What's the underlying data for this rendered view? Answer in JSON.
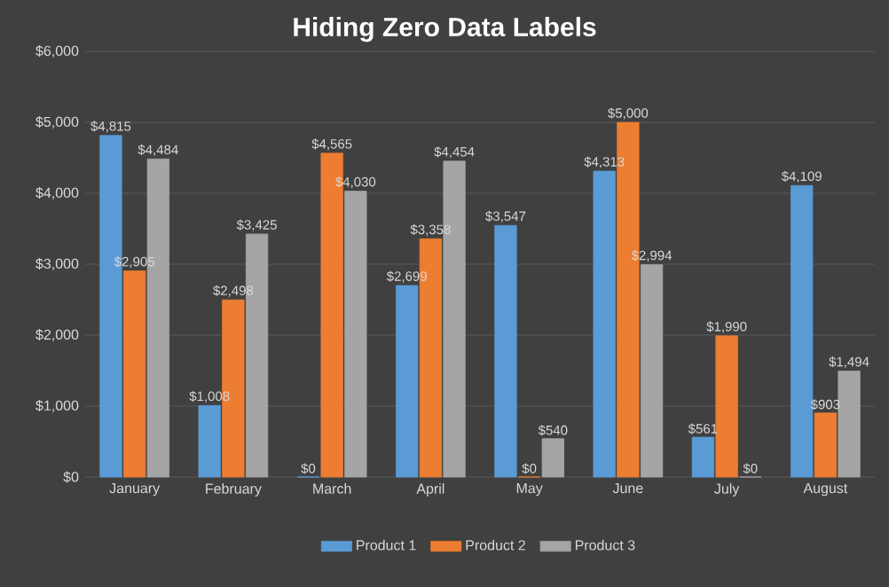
{
  "chart_data": {
    "type": "bar",
    "title": "Hiding Zero Data Labels",
    "categories": [
      "January",
      "February",
      "March",
      "April",
      "May",
      "June",
      "July",
      "August"
    ],
    "series": [
      {
        "name": "Product 1",
        "color": "#5b9bd5",
        "values": [
          4815,
          1008,
          0,
          2699,
          3547,
          4313,
          561,
          4109
        ],
        "value_labels": [
          "$4,815",
          "$1,008",
          "$0",
          "$2,699",
          "$3,547",
          "$4,313",
          "$561",
          "$4,109"
        ]
      },
      {
        "name": "Product 2",
        "color": "#ed7d31",
        "values": [
          2905,
          2498,
          4565,
          3358,
          0,
          5000,
          1990,
          903
        ],
        "value_labels": [
          "$2,905",
          "$2,498",
          "$4,565",
          "$3,358",
          "$0",
          "$5,000",
          "$1,990",
          "$903"
        ]
      },
      {
        "name": "Product 3",
        "color": "#a5a5a5",
        "values": [
          4484,
          3425,
          4030,
          4454,
          540,
          2994,
          0,
          1494
        ],
        "value_labels": [
          "$4,484",
          "$3,425",
          "$4,030",
          "$4,454",
          "$540",
          "$2,994",
          "$0",
          "$1,494"
        ]
      }
    ],
    "ylim": [
      0,
      6000
    ],
    "yticks": [
      {
        "value": 0,
        "label": "$0"
      },
      {
        "value": 1000,
        "label": "$1,000"
      },
      {
        "value": 2000,
        "label": "$2,000"
      },
      {
        "value": 3000,
        "label": "$3,000"
      },
      {
        "value": 4000,
        "label": "$4,000"
      },
      {
        "value": 5000,
        "label": "$5,000"
      },
      {
        "value": 6000,
        "label": "$6,000"
      }
    ],
    "grid": "y",
    "legend": "bottom"
  }
}
